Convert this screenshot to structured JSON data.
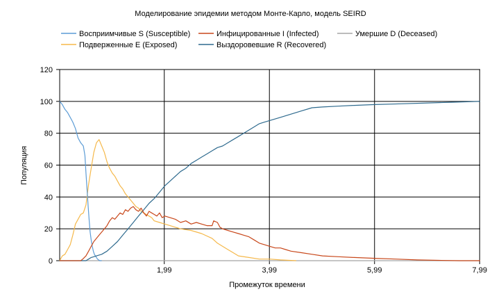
{
  "chart_data": {
    "type": "line",
    "title": "Моделирование эпидемии методом Монте-Карло, модель SEIRD",
    "xlabel": "Промежуток времени",
    "ylabel": "Популяция",
    "xlim": [
      0,
      8.0
    ],
    "ylim": [
      0,
      120
    ],
    "x_ticks": [
      {
        "value": 1.99,
        "label": "1,99"
      },
      {
        "value": 3.99,
        "label": "3,99"
      },
      {
        "value": 5.99,
        "label": "5,99"
      },
      {
        "value": 7.99,
        "label": "7,99"
      }
    ],
    "y_ticks": [
      0,
      20,
      40,
      60,
      80,
      100,
      120
    ],
    "grid": true,
    "legend_position": "top",
    "series": [
      {
        "name": "Восприимчивые S (Susceptible)",
        "color": "#5b9bd5",
        "points": [
          [
            0,
            100
          ],
          [
            0.05,
            98
          ],
          [
            0.1,
            95
          ],
          [
            0.15,
            93
          ],
          [
            0.2,
            90
          ],
          [
            0.25,
            87
          ],
          [
            0.3,
            83
          ],
          [
            0.35,
            77
          ],
          [
            0.4,
            74
          ],
          [
            0.45,
            72
          ],
          [
            0.48,
            66
          ],
          [
            0.5,
            55
          ],
          [
            0.52,
            45
          ],
          [
            0.54,
            35
          ],
          [
            0.56,
            26
          ],
          [
            0.58,
            18
          ],
          [
            0.6,
            13
          ],
          [
            0.62,
            9
          ],
          [
            0.64,
            6
          ],
          [
            0.66,
            4
          ],
          [
            0.68,
            3
          ],
          [
            0.7,
            2
          ],
          [
            0.72,
            1
          ],
          [
            0.74,
            0.5
          ],
          [
            0.76,
            0
          ],
          [
            0.8,
            0
          ]
        ]
      },
      {
        "name": "Инфицированные I (Infected)",
        "color": "#c8471a",
        "points": [
          [
            0,
            0
          ],
          [
            0.4,
            0
          ],
          [
            0.44,
            1
          ],
          [
            0.5,
            3
          ],
          [
            0.55,
            6
          ],
          [
            0.6,
            9
          ],
          [
            0.65,
            12
          ],
          [
            0.7,
            14
          ],
          [
            0.75,
            16
          ],
          [
            0.8,
            18
          ],
          [
            0.85,
            20
          ],
          [
            0.9,
            22
          ],
          [
            0.95,
            25
          ],
          [
            1.0,
            27
          ],
          [
            1.05,
            26
          ],
          [
            1.1,
            28
          ],
          [
            1.15,
            30
          ],
          [
            1.2,
            29
          ],
          [
            1.25,
            32
          ],
          [
            1.3,
            31
          ],
          [
            1.35,
            33
          ],
          [
            1.4,
            34
          ],
          [
            1.45,
            32
          ],
          [
            1.5,
            31
          ],
          [
            1.55,
            33
          ],
          [
            1.6,
            30
          ],
          [
            1.65,
            28
          ],
          [
            1.7,
            31
          ],
          [
            1.75,
            30
          ],
          [
            1.8,
            29
          ],
          [
            1.85,
            28
          ],
          [
            1.9,
            30
          ],
          [
            1.95,
            27
          ],
          [
            2.0,
            28
          ],
          [
            2.1,
            27
          ],
          [
            2.2,
            26
          ],
          [
            2.3,
            24
          ],
          [
            2.4,
            25
          ],
          [
            2.5,
            23
          ],
          [
            2.6,
            24
          ],
          [
            2.7,
            23
          ],
          [
            2.8,
            22
          ],
          [
            2.9,
            22
          ],
          [
            2.93,
            25
          ],
          [
            3.0,
            24
          ],
          [
            3.05,
            21
          ],
          [
            3.1,
            20
          ],
          [
            3.2,
            19
          ],
          [
            3.3,
            18
          ],
          [
            3.4,
            17
          ],
          [
            3.5,
            16
          ],
          [
            3.6,
            15
          ],
          [
            3.7,
            13
          ],
          [
            3.8,
            11
          ],
          [
            3.9,
            10
          ],
          [
            4.0,
            9
          ],
          [
            4.1,
            8
          ],
          [
            4.2,
            8
          ],
          [
            4.3,
            7
          ],
          [
            4.4,
            6
          ],
          [
            4.6,
            5
          ],
          [
            4.8,
            4
          ],
          [
            5.0,
            3
          ],
          [
            5.3,
            2.5
          ],
          [
            5.6,
            2
          ],
          [
            6.0,
            1.5
          ],
          [
            6.4,
            1
          ],
          [
            6.8,
            0.5
          ],
          [
            7.2,
            0.2
          ],
          [
            7.6,
            0
          ],
          [
            8.0,
            0
          ]
        ]
      },
      {
        "name": "Умершие D (Deceased)",
        "color": "#a5a5a5",
        "points": [
          [
            0,
            0
          ],
          [
            8.0,
            0
          ]
        ]
      },
      {
        "name": "Подверженные E (Exposed)",
        "color": "#f5b84a",
        "points": [
          [
            0,
            0
          ],
          [
            0.05,
            3
          ],
          [
            0.1,
            4
          ],
          [
            0.15,
            7
          ],
          [
            0.2,
            10
          ],
          [
            0.25,
            16
          ],
          [
            0.3,
            23
          ],
          [
            0.35,
            26
          ],
          [
            0.4,
            29
          ],
          [
            0.45,
            30
          ],
          [
            0.5,
            35
          ],
          [
            0.55,
            48
          ],
          [
            0.6,
            58
          ],
          [
            0.65,
            68
          ],
          [
            0.7,
            74
          ],
          [
            0.75,
            76
          ],
          [
            0.8,
            72
          ],
          [
            0.85,
            68
          ],
          [
            0.9,
            62
          ],
          [
            0.95,
            58
          ],
          [
            1.0,
            55
          ],
          [
            1.05,
            53
          ],
          [
            1.1,
            50
          ],
          [
            1.15,
            47
          ],
          [
            1.2,
            45
          ],
          [
            1.25,
            42
          ],
          [
            1.3,
            40
          ],
          [
            1.35,
            38
          ],
          [
            1.4,
            36
          ],
          [
            1.45,
            34
          ],
          [
            1.5,
            33
          ],
          [
            1.55,
            31
          ],
          [
            1.6,
            30
          ],
          [
            1.65,
            29
          ],
          [
            1.7,
            28
          ],
          [
            1.75,
            27
          ],
          [
            1.8,
            25
          ],
          [
            1.9,
            24
          ],
          [
            2.0,
            23
          ],
          [
            2.1,
            22
          ],
          [
            2.2,
            21
          ],
          [
            2.3,
            20
          ],
          [
            2.5,
            19
          ],
          [
            2.7,
            17
          ],
          [
            2.9,
            14
          ],
          [
            3.0,
            11
          ],
          [
            3.1,
            9
          ],
          [
            3.2,
            7
          ],
          [
            3.3,
            5
          ],
          [
            3.4,
            3
          ],
          [
            3.6,
            2
          ],
          [
            3.8,
            1
          ],
          [
            4.0,
            1
          ],
          [
            4.2,
            0.5
          ],
          [
            4.5,
            0
          ]
        ]
      },
      {
        "name": "Выздоровевшие R (Recovered)",
        "color": "#2e6a8e",
        "points": [
          [
            0,
            0
          ],
          [
            0.5,
            0
          ],
          [
            0.55,
            1
          ],
          [
            0.6,
            2
          ],
          [
            0.65,
            2.5
          ],
          [
            0.7,
            3
          ],
          [
            0.8,
            4
          ],
          [
            0.9,
            6
          ],
          [
            1.0,
            9
          ],
          [
            1.1,
            12
          ],
          [
            1.2,
            16
          ],
          [
            1.3,
            20
          ],
          [
            1.4,
            24
          ],
          [
            1.5,
            28
          ],
          [
            1.6,
            32
          ],
          [
            1.7,
            36
          ],
          [
            1.8,
            39
          ],
          [
            1.9,
            43
          ],
          [
            2.0,
            47
          ],
          [
            2.1,
            50
          ],
          [
            2.2,
            53
          ],
          [
            2.3,
            56
          ],
          [
            2.4,
            58
          ],
          [
            2.5,
            61
          ],
          [
            2.6,
            63
          ],
          [
            2.7,
            65
          ],
          [
            2.8,
            67
          ],
          [
            2.9,
            69
          ],
          [
            3.0,
            71
          ],
          [
            3.1,
            72
          ],
          [
            3.2,
            74
          ],
          [
            3.3,
            76
          ],
          [
            3.4,
            78
          ],
          [
            3.5,
            80
          ],
          [
            3.6,
            82
          ],
          [
            3.7,
            84
          ],
          [
            3.8,
            86
          ],
          [
            3.9,
            87
          ],
          [
            4.0,
            88
          ],
          [
            4.2,
            90
          ],
          [
            4.4,
            92
          ],
          [
            4.6,
            94
          ],
          [
            4.8,
            96
          ],
          [
            5.0,
            96.5
          ],
          [
            5.3,
            97
          ],
          [
            5.6,
            97.5
          ],
          [
            6.0,
            98
          ],
          [
            6.5,
            98.5
          ],
          [
            7.0,
            99
          ],
          [
            7.5,
            99.5
          ],
          [
            8.0,
            100
          ]
        ]
      }
    ]
  }
}
